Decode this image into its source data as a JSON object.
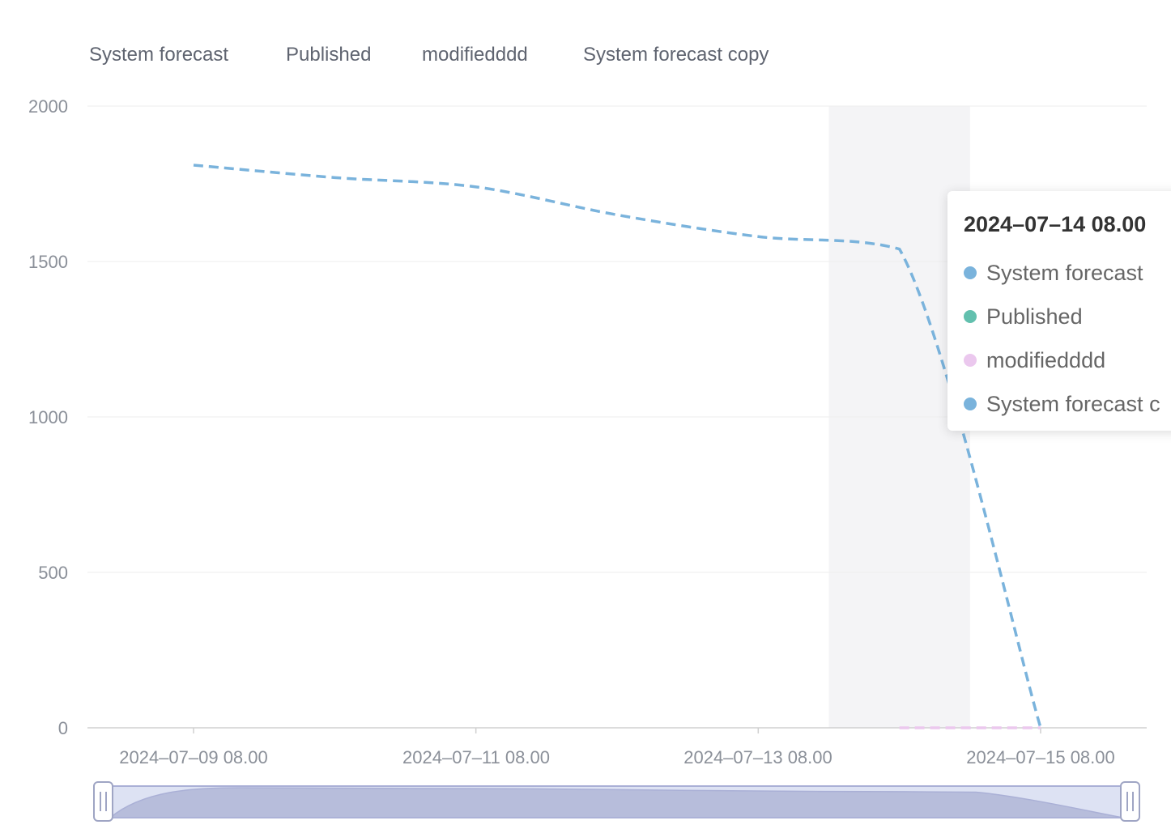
{
  "chart_data": {
    "type": "line",
    "legend": {
      "placement": "top-left",
      "items": [
        "System forecast",
        "Published",
        "modifiedddd",
        "System forecast copy"
      ]
    },
    "yaxis": {
      "ticks": [
        "2000",
        "1500",
        "1000",
        "500",
        "0"
      ],
      "ylim": [
        0,
        2000
      ]
    },
    "xaxis": {
      "ticks": [
        "2024–07–09 08.00",
        "2024–07–11 08.00",
        "2024–07–13 08.00",
        "2024–07–15 08.00"
      ]
    },
    "grid": true,
    "series": [
      {
        "name": "System forecast",
        "color": "#7ab3dc",
        "style": "dashed",
        "x": [
          "2024-07-09 08:00",
          "2024-07-10 08:00",
          "2024-07-11 08:00",
          "2024-07-12 08:00",
          "2024-07-13 08:00",
          "2024-07-14 08:00",
          "2024-07-15 08:00"
        ],
        "values": [
          1810,
          1770,
          1740,
          1650,
          1580,
          1540,
          0
        ]
      },
      {
        "name": "Published",
        "color": "#62c0ae",
        "style": "dashed",
        "x": [],
        "values": []
      },
      {
        "name": "modifiedddd",
        "color": "#ebc8ee",
        "style": "dashed",
        "x": [
          "2024-07-14 08:00",
          "2024-07-15 08:00"
        ],
        "values": [
          0,
          0
        ]
      },
      {
        "name": "System forecast copy",
        "color": "#7ab3dc",
        "style": "dashed",
        "x": [],
        "values": []
      }
    ],
    "highlight_band": {
      "from": "2024-07-13 20:00",
      "to": "2024-07-14 20:00"
    },
    "tooltip": {
      "title": "2024–07–14 08.00",
      "items": [
        {
          "name": "System forecast",
          "color": "#7ab3dc"
        },
        {
          "name": "Published",
          "color": "#62c0ae"
        },
        {
          "name": "modifiedddd",
          "color": "#ebc8ee"
        },
        {
          "name": "System forecast c",
          "color": "#7ab3dc"
        }
      ]
    },
    "zoom_slider": {
      "start": 0,
      "end": 1
    }
  },
  "colors": {
    "grid": "#eeeeee",
    "axis": "#d0d0d0",
    "band": "#f4f4f6",
    "slider_fill": "#dde2f3",
    "slider_border": "#aab0d6",
    "slider_area": "#b7bddb"
  }
}
